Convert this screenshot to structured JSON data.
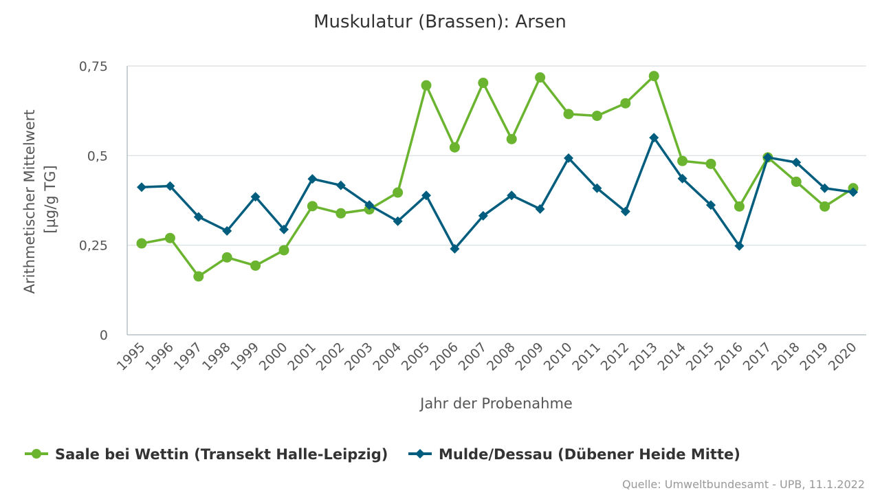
{
  "chart_data": {
    "type": "line",
    "title": "Muskulatur (Brassen): Arsen",
    "xlabel": "Jahr der Probenahme",
    "ylabel": [
      "Arithmetischer Mittelwert",
      "[µg/g TG]"
    ],
    "ylim": [
      0,
      0.75
    ],
    "yticks": [
      {
        "value": 0,
        "label": "0"
      },
      {
        "value": 0.25,
        "label": "0,25"
      },
      {
        "value": 0.5,
        "label": "0,5"
      },
      {
        "value": 0.75,
        "label": "0,75"
      }
    ],
    "grid": true,
    "legend_position": "bottom",
    "categories": [
      "1995",
      "1996",
      "1997",
      "1998",
      "1999",
      "2000",
      "2001",
      "2002",
      "2003",
      "2004",
      "2005",
      "2006",
      "2007",
      "2008",
      "2009",
      "2010",
      "2011",
      "2012",
      "2013",
      "2014",
      "2015",
      "2016",
      "2017",
      "2018",
      "2019",
      "2020"
    ],
    "series": [
      {
        "name": "Saale bei Wettin (Transekt Halle-Leipzig)",
        "color": "#6ab42f",
        "marker": "circle",
        "values": [
          0.255,
          0.27,
          0.163,
          0.216,
          0.193,
          0.236,
          0.359,
          0.339,
          0.35,
          0.397,
          0.696,
          0.523,
          0.703,
          0.546,
          0.718,
          0.616,
          0.611,
          0.646,
          0.722,
          0.485,
          0.477,
          0.358,
          0.495,
          0.427,
          0.358,
          0.409
        ]
      },
      {
        "name": "Mulde/Dessau (Dübener Heide Mitte)",
        "color": "#005d7e",
        "marker": "diamond",
        "values": [
          0.412,
          0.415,
          0.329,
          0.29,
          0.385,
          0.294,
          0.435,
          0.417,
          0.362,
          0.317,
          0.389,
          0.24,
          0.332,
          0.389,
          0.351,
          0.493,
          0.409,
          0.344,
          0.55,
          0.436,
          0.362,
          0.248,
          0.495,
          0.481,
          0.409,
          0.398
        ]
      }
    ]
  },
  "source": "Quelle: Umweltbundesamt - UPB, 11.1.2022"
}
